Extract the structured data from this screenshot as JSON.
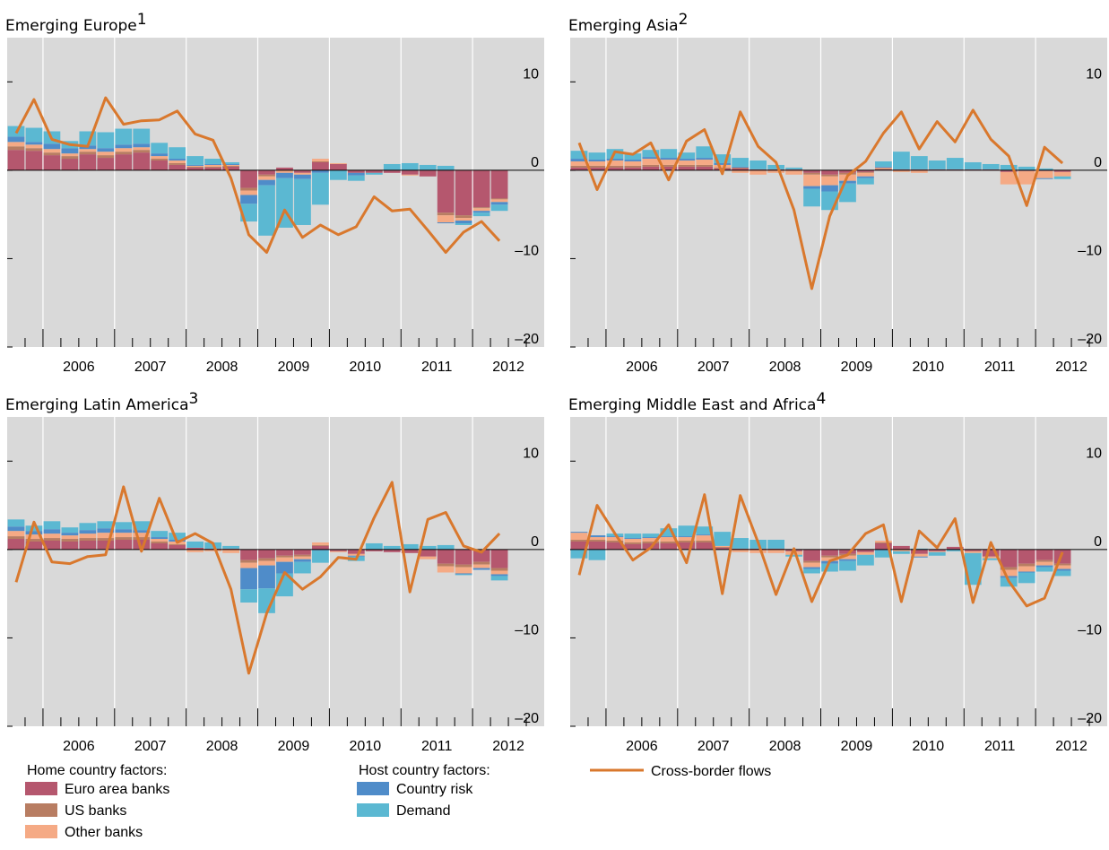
{
  "legend_groups": [
    "Home country factors:",
    "Host country factors:"
  ],
  "chart_data": [
    {
      "type": "bar",
      "stacked": true,
      "title": "Emerging Europe",
      "title_note": "1",
      "ylim": [
        -20,
        15
      ],
      "yticks": [
        {
          "value": -20,
          "label": "–20"
        },
        {
          "value": -10,
          "label": "–10"
        },
        0,
        10
      ],
      "categories": [
        null,
        null,
        null,
        null,
        null,
        null,
        null,
        null,
        null,
        null,
        null,
        null,
        null,
        null,
        null,
        null,
        null,
        null,
        null,
        null,
        null,
        null,
        null,
        null,
        null,
        null,
        null,
        null
      ],
      "x_labels": [
        "2006",
        "2007",
        "2008",
        "2009",
        "2010",
        "2011",
        "2012"
      ],
      "series": [
        {
          "name": "Euro area banks",
          "color": "#b5576e",
          "values": [
            2.3,
            2.2,
            1.7,
            1.3,
            1.8,
            1.4,
            1.8,
            2.0,
            1.1,
            0.6,
            0.3,
            0.3,
            0.4,
            -2.0,
            -0.5,
            0.3,
            -0.3,
            0.9,
            0.7,
            -0.3,
            -0.3,
            -0.3,
            -0.5,
            -0.7,
            -4.8,
            -5.1,
            -4.2,
            -3.2
          ]
        },
        {
          "name": "US banks",
          "color": "#b87d62",
          "values": [
            0.4,
            0.3,
            0.3,
            0.3,
            0.3,
            0.3,
            0.3,
            0.3,
            0.2,
            0.2,
            0.1,
            0.1,
            0.1,
            -0.3,
            -0.2,
            0,
            0,
            0.1,
            0,
            0,
            0,
            0,
            0,
            0,
            -0.3,
            -0.3,
            -0.1,
            -0.1
          ]
        },
        {
          "name": "Other banks",
          "color": "#f5aa85",
          "values": [
            0.5,
            0.4,
            0.4,
            0.3,
            0.3,
            0.4,
            0.4,
            0.3,
            0.3,
            0.3,
            0.1,
            0.2,
            0.1,
            -0.5,
            -0.4,
            -0.3,
            -0.2,
            0.3,
            0.1,
            0,
            0,
            0,
            -0.1,
            0,
            -0.8,
            -0.3,
            -0.3,
            -0.3
          ]
        },
        {
          "name": "Country risk",
          "color": "#4f8cc9",
          "values": [
            0.6,
            0.3,
            0.6,
            0.6,
            0.4,
            0.4,
            0.4,
            0.4,
            0.3,
            0.2,
            0.1,
            0.1,
            0.1,
            -1.0,
            -0.6,
            -0.6,
            -0.5,
            -0.3,
            0,
            -0.3,
            0,
            0,
            0,
            0,
            -0.1,
            -0.3,
            -0.2,
            -0.3
          ]
        },
        {
          "name": "Demand",
          "color": "#5bb8d2",
          "values": [
            1.2,
            1.6,
            1.4,
            0.8,
            1.6,
            1.8,
            1.8,
            1.7,
            1.2,
            1.3,
            1.0,
            0.6,
            0.2,
            -2.0,
            -5.7,
            -5.6,
            -5.2,
            -3.6,
            -1.1,
            -0.6,
            -0.2,
            0.7,
            0.8,
            0.6,
            0.5,
            -0.2,
            -0.4,
            -0.7
          ]
        },
        {
          "name": "Cross-border flows",
          "color": "#d9782d",
          "type": "line",
          "values": [
            4.2,
            8.0,
            3.5,
            2.9,
            2.7,
            8.2,
            5.2,
            5.6,
            5.7,
            6.7,
            4.1,
            3.4,
            -0.9,
            -7.3,
            -9.3,
            -4.5,
            -7.6,
            -6.2,
            -7.3,
            -6.4,
            -3.0,
            -4.6,
            -4.4,
            -6.8,
            -9.3,
            -7.0,
            -5.8,
            -8.0
          ]
        }
      ]
    },
    {
      "type": "bar",
      "stacked": true,
      "title": "Emerging Asia",
      "title_note": "2",
      "ylim": [
        -20,
        15
      ],
      "yticks": [
        {
          "value": -20,
          "label": "–20"
        },
        {
          "value": -10,
          "label": "–10"
        },
        0,
        10
      ],
      "categories": [
        null,
        null,
        null,
        null,
        null,
        null,
        null,
        null,
        null,
        null,
        null,
        null,
        null,
        null,
        null,
        null,
        null,
        null,
        null,
        null,
        null,
        null,
        null,
        null,
        null,
        null,
        null,
        null
      ],
      "x_labels": [
        "2006",
        "2007",
        "2008",
        "2009",
        "2010",
        "2011",
        "2012"
      ],
      "series": [
        {
          "values": [
            0.3,
            0.3,
            0.3,
            0.3,
            0.4,
            0.4,
            0.4,
            0.4,
            0.2,
            0.2,
            0.1,
            0.1,
            0.1,
            -0.3,
            -0.5,
            -0.3,
            -0.2,
            0.1,
            0.1,
            0.1,
            0.1,
            0.1,
            0.1,
            0.1,
            -0.2,
            -0.1,
            -0.1,
            -0.2
          ]
        },
        {
          "values": [
            0.2,
            0.2,
            0.2,
            0.2,
            0.2,
            0.2,
            0.2,
            0.2,
            0.1,
            0.1,
            0,
            0,
            0,
            -0.2,
            -0.2,
            -0.2,
            -0.1,
            0.1,
            0,
            0,
            0,
            0,
            0,
            0,
            0,
            0,
            0,
            0
          ]
        },
        {
          "values": [
            0.5,
            0.5,
            0.6,
            0.5,
            0.7,
            0.6,
            0.5,
            0.6,
            0.3,
            -0.3,
            -0.5,
            -0.3,
            -0.5,
            -1.3,
            -1.0,
            -0.7,
            -0.4,
            0.1,
            -0.2,
            -0.3,
            0,
            0,
            0,
            0,
            -1.4,
            -1.5,
            -0.8,
            -0.5
          ]
        },
        {
          "values": [
            0.3,
            0.2,
            0.2,
            0.2,
            0.2,
            0.2,
            0.2,
            0.2,
            0.2,
            0.1,
            0,
            0,
            0,
            -0.3,
            -0.7,
            -0.3,
            -0.2,
            0.1,
            0,
            0,
            0,
            0,
            0,
            0,
            0,
            0,
            -0.1,
            0
          ]
        },
        {
          "values": [
            0.9,
            0.8,
            1.1,
            0.7,
            0.8,
            1.0,
            0.7,
            1.3,
            1.0,
            1.0,
            1.0,
            0.5,
            0.2,
            -2.0,
            -2.1,
            -2.1,
            -0.7,
            0.6,
            2.0,
            1.5,
            1.0,
            1.3,
            0.8,
            0.6,
            0.6,
            0.4,
            0.2,
            -0.3
          ]
        },
        {
          "type": "line",
          "values": [
            3.1,
            -2.2,
            2.1,
            1.8,
            3.1,
            -1.1,
            3.3,
            4.6,
            -0.4,
            6.6,
            2.7,
            0.9,
            -4.5,
            -13.4,
            -5.2,
            -0.6,
            1.0,
            4.2,
            6.6,
            2.4,
            5.5,
            3.2,
            6.8,
            3.5,
            1.6,
            -4.0,
            2.6,
            0.8
          ]
        }
      ]
    },
    {
      "type": "bar",
      "stacked": true,
      "title": "Emerging Latin America",
      "title_note": "3",
      "ylim": [
        -20,
        15
      ],
      "yticks": [
        {
          "value": -20,
          "label": "–20"
        },
        {
          "value": -10,
          "label": "–10"
        },
        0,
        10
      ],
      "categories": [
        null,
        null,
        null,
        null,
        null,
        null,
        null,
        null,
        null,
        null,
        null,
        null,
        null,
        null,
        null,
        null,
        null,
        null,
        null,
        null,
        null,
        null,
        null,
        null,
        null,
        null,
        null,
        null
      ],
      "x_labels": [
        "2006",
        "2007",
        "2008",
        "2009",
        "2010",
        "2011",
        "2012"
      ],
      "series": [
        {
          "values": [
            1.2,
            0.9,
            1.0,
            0.9,
            1.0,
            1.0,
            1.1,
            1.1,
            0.7,
            0.5,
            0.2,
            0.1,
            0.1,
            -1.2,
            -1.0,
            -0.7,
            -0.6,
            0.4,
            -0.2,
            -0.5,
            -0.2,
            -0.3,
            -0.4,
            -0.8,
            -1.6,
            -1.7,
            -1.4,
            -2.1
          ]
        },
        {
          "values": [
            0.3,
            0.3,
            0.3,
            0.3,
            0.3,
            0.3,
            0.3,
            0.3,
            0.2,
            0.1,
            0,
            0,
            0,
            -0.3,
            -0.3,
            -0.2,
            -0.2,
            0.1,
            0,
            0,
            0,
            0,
            0,
            0,
            -0.3,
            -0.3,
            -0.3,
            -0.3
          ]
        },
        {
          "values": [
            0.6,
            0.5,
            0.5,
            0.4,
            0.5,
            0.6,
            0.5,
            0.5,
            0.3,
            0.3,
            -0.3,
            -0.2,
            -0.4,
            -0.6,
            -0.5,
            -0.5,
            -0.3,
            0.3,
            -0.1,
            -0.2,
            0,
            0,
            0,
            -0.3,
            -0.7,
            -0.7,
            -0.4,
            -0.4
          ]
        },
        {
          "values": [
            0.5,
            0.4,
            0.5,
            0.3,
            0.4,
            0.5,
            0.4,
            0.3,
            0.2,
            0.2,
            0,
            0,
            0,
            -2.4,
            -2.6,
            -1.3,
            -0.3,
            -0.1,
            0,
            -0.1,
            0,
            0,
            0,
            0,
            0,
            -0.1,
            -0.2,
            -0.2
          ]
        },
        {
          "values": [
            0.8,
            0.6,
            0.9,
            0.6,
            0.8,
            0.8,
            0.8,
            1.0,
            0.7,
            0.8,
            0.7,
            0.7,
            0.3,
            -1.5,
            -2.8,
            -2.6,
            -1.3,
            -1.4,
            0,
            -0.5,
            0.7,
            0.4,
            0.6,
            0.4,
            0.5,
            -0.1,
            0,
            -0.5
          ]
        },
        {
          "type": "line",
          "values": [
            -3.7,
            3.1,
            -1.4,
            -1.6,
            -0.8,
            -0.6,
            7.1,
            -0.2,
            5.8,
            0.8,
            1.8,
            0.7,
            -4.5,
            -14.0,
            -7.2,
            -2.6,
            -4.5,
            -3.1,
            -0.9,
            -1.1,
            3.6,
            7.6,
            -4.8,
            3.4,
            4.2,
            0.4,
            -0.3,
            1.8
          ]
        }
      ]
    },
    {
      "type": "bar",
      "stacked": true,
      "title": "Emerging Middle East and Africa",
      "title_note": "4",
      "ylim": [
        -20,
        15
      ],
      "yticks": [
        {
          "value": -20,
          "label": "–20"
        },
        {
          "value": -10,
          "label": "–10"
        },
        0,
        10
      ],
      "categories": [
        null,
        null,
        null,
        null,
        null,
        null,
        null,
        null,
        null,
        null,
        null,
        null,
        null,
        null,
        null,
        null,
        null,
        null,
        null,
        null,
        null,
        null,
        null,
        null,
        null,
        null,
        null,
        null
      ],
      "x_labels": [
        "2006",
        "2007",
        "2008",
        "2009",
        "2010",
        "2011",
        "2012"
      ],
      "series": [
        {
          "values": [
            0.9,
            0.9,
            0.8,
            0.6,
            0.7,
            0.7,
            0.8,
            0.8,
            0.2,
            0.1,
            0.1,
            0.1,
            -0.2,
            -1.3,
            -0.7,
            -0.5,
            -0.3,
            0.7,
            0.4,
            -0.5,
            -0.2,
            0.3,
            -0.2,
            -0.8,
            -2.0,
            -1.6,
            -1.2,
            -1.6
          ]
        },
        {
          "values": [
            0.2,
            0.2,
            0.2,
            0.2,
            0.2,
            0.2,
            0.2,
            0.2,
            0.1,
            0,
            0,
            0,
            0,
            -0.2,
            -0.2,
            -0.2,
            0,
            0.1,
            0,
            0,
            0,
            0,
            0,
            0,
            -0.3,
            -0.3,
            -0.2,
            -0.2
          ]
        },
        {
          "values": [
            0.8,
            0.3,
            0.4,
            0.4,
            0.4,
            0.5,
            0.4,
            0.6,
            0.1,
            -0.3,
            -0.4,
            -0.4,
            -0.4,
            -0.5,
            -0.4,
            -0.4,
            -0.3,
            0.2,
            -0.2,
            -0.3,
            -0.1,
            0,
            -0.2,
            -0.2,
            -0.7,
            -0.6,
            -0.4,
            -0.4
          ]
        },
        {
          "values": [
            0.1,
            0.2,
            0.1,
            0.1,
            0.1,
            0.1,
            0.1,
            0.1,
            0,
            0,
            0,
            0,
            0,
            -0.2,
            -0.3,
            -0.2,
            0,
            -0.1,
            0,
            -0.1,
            0,
            0,
            0,
            0,
            -0.2,
            -0.1,
            -0.2,
            -0.2
          ]
        },
        {
          "values": [
            -1.0,
            -1.2,
            0.3,
            0.5,
            0.4,
            0.9,
            1.2,
            0.9,
            1.6,
            1.2,
            1.0,
            1.0,
            -0.2,
            -0.5,
            -0.9,
            -1.1,
            -1.2,
            -0.8,
            -0.3,
            0.1,
            -0.4,
            -0.2,
            -3.6,
            -0.2,
            -1.0,
            -1.2,
            -0.5,
            -0.6
          ]
        },
        {
          "type": "line",
          "values": [
            -2.9,
            5.0,
            1.8,
            -1.2,
            0.2,
            2.8,
            -1.5,
            6.2,
            -5.0,
            6.1,
            0.8,
            -5.1,
            0.1,
            -5.9,
            -1.3,
            -0.6,
            1.8,
            2.8,
            -5.9,
            2.1,
            0.2,
            3.5,
            -6.0,
            0.8,
            -3.6,
            -6.4,
            -5.5,
            -0.3
          ]
        }
      ]
    }
  ]
}
